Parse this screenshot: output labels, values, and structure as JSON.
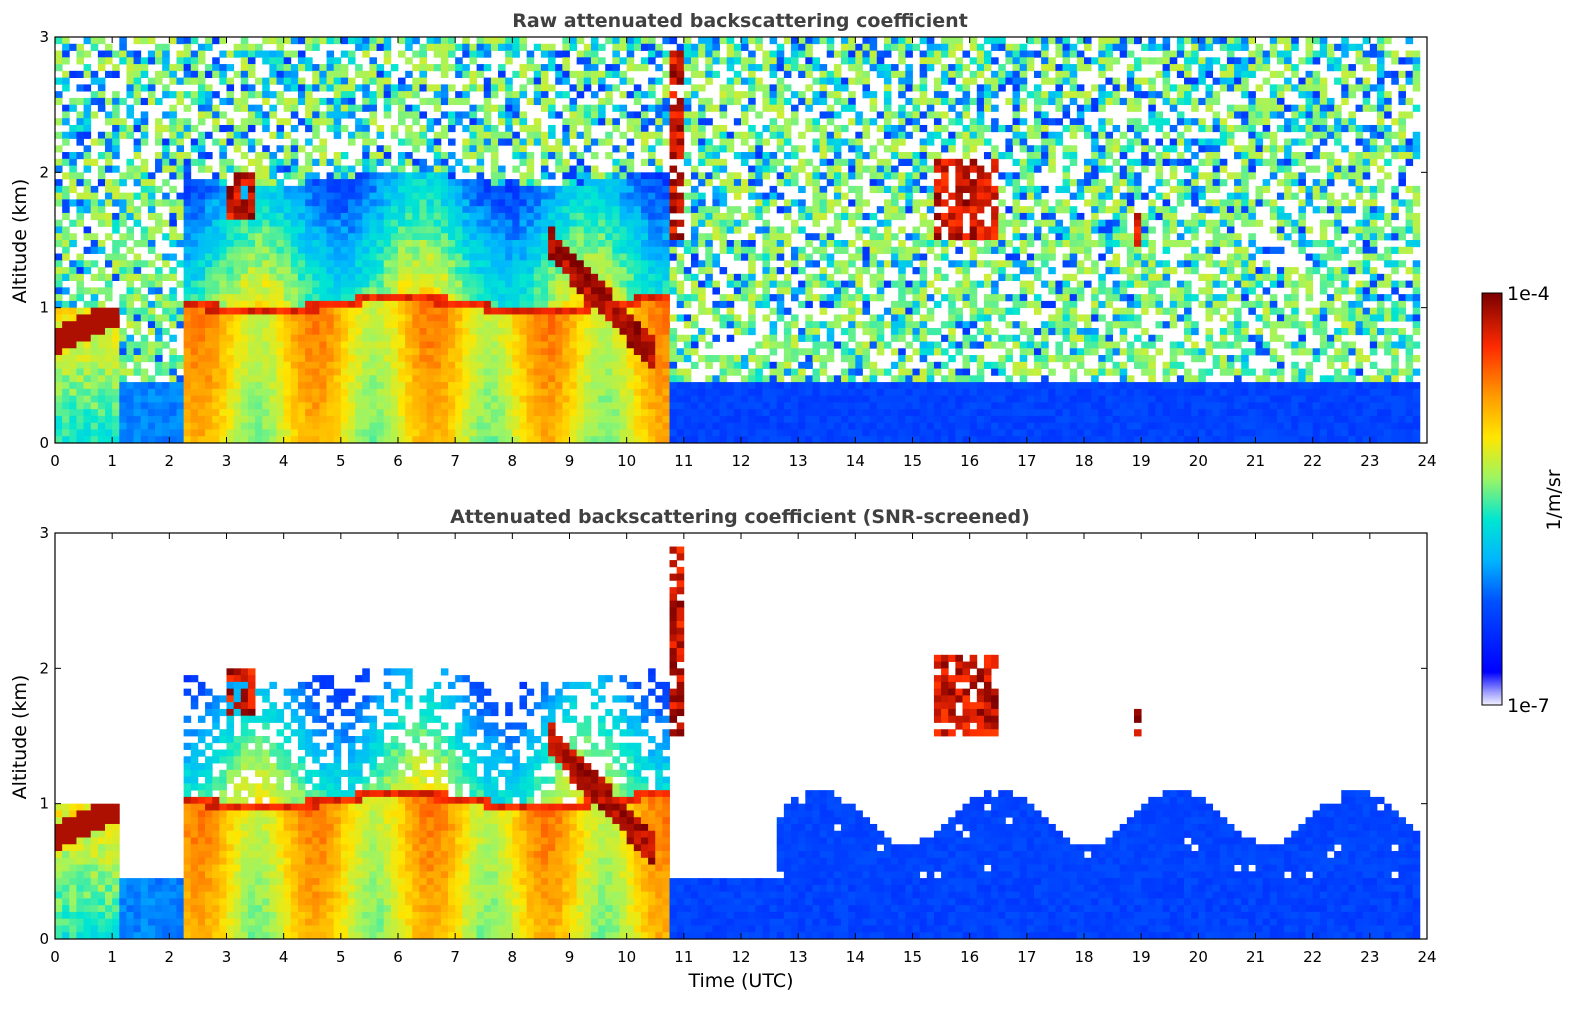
{
  "chart_data": [
    {
      "type": "heatmap",
      "title": "Raw attenuated backscattering coefficient",
      "ylabel": "Altitude (km)",
      "xlabel": "",
      "xlim": [
        0,
        24
      ],
      "ylim": [
        0,
        3
      ],
      "xticks": [
        "0",
        "1",
        "2",
        "3",
        "4",
        "5",
        "6",
        "7",
        "8",
        "9",
        "10",
        "11",
        "12",
        "13",
        "14",
        "15",
        "16",
        "17",
        "18",
        "19",
        "20",
        "21",
        "22",
        "23",
        "24"
      ],
      "yticks": [
        "0",
        "1",
        "2",
        "3"
      ],
      "data_end_time": 23.85,
      "features": [
        {
          "name": "low cloud",
          "t_start": 0.0,
          "t_end": 1.1,
          "alt_km": 0.9,
          "intensity": "high"
        },
        {
          "name": "boundary layer",
          "t_start": 2.3,
          "t_end": 10.7,
          "alt_top_km": 1.1,
          "intensity": "high"
        },
        {
          "name": "cloud",
          "t_start": 3.0,
          "t_end": 3.5,
          "alt_km": 1.8,
          "intensity": "high"
        },
        {
          "name": "descending cloud layer",
          "t_start": 8.8,
          "t_end": 10.4,
          "alt_km": 0.8,
          "intensity": "high"
        },
        {
          "name": "cloud",
          "t_start": 10.7,
          "t_end": 11.0,
          "alt_km": 2.2,
          "intensity": "high"
        },
        {
          "name": "cloud",
          "t_start": 15.4,
          "t_end": 16.5,
          "alt_km": 1.8,
          "intensity": "high"
        },
        {
          "name": "cloud",
          "t_start": 18.9,
          "t_end": 19.0,
          "alt_km": 1.6,
          "intensity": "high"
        }
      ],
      "grid": false
    },
    {
      "type": "heatmap",
      "title": "Attenuated backscattering coefficient (SNR-screened)",
      "ylabel": "Altitude (km)",
      "xlabel": "Time (UTC)",
      "xlim": [
        0,
        24
      ],
      "ylim": [
        0,
        3
      ],
      "xticks": [
        "0",
        "1",
        "2",
        "3",
        "4",
        "5",
        "6",
        "7",
        "8",
        "9",
        "10",
        "11",
        "12",
        "13",
        "14",
        "15",
        "16",
        "17",
        "18",
        "19",
        "20",
        "21",
        "22",
        "23",
        "24"
      ],
      "yticks": [
        "0",
        "1",
        "2",
        "3"
      ],
      "data_end_time": 23.85,
      "grid": false
    }
  ],
  "colorbar": {
    "label": "1/m/sr",
    "max_label": "1e-4",
    "min_label": "1e-7",
    "scale": "log",
    "range": [
      1e-07,
      0.0001
    ],
    "colormap": "jet"
  },
  "colors": {
    "title": "#404040",
    "background": "#ffffff"
  }
}
